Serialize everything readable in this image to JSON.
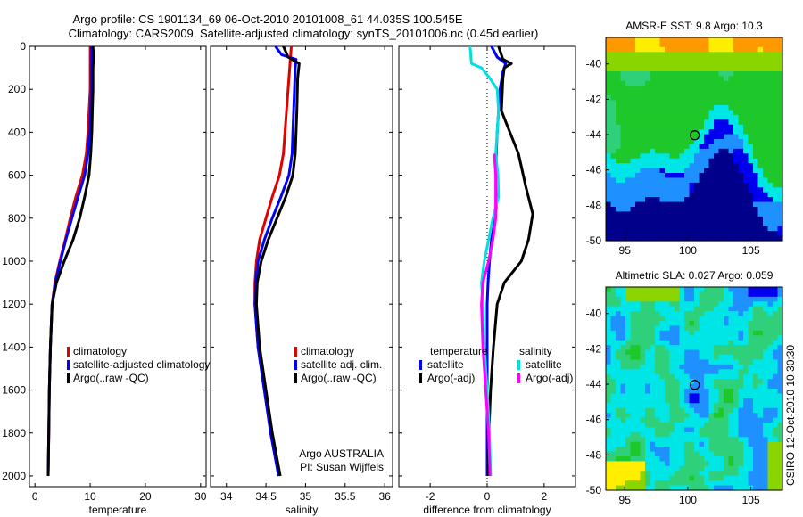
{
  "header": {
    "line1": "Argo profile: CS 1901134_69 06-Oct-2010 20101008_61 44.035S 100.545E",
    "line2": "Climatology: CARS2009. Satellite-adjusted climatology: synTS_20101006.nc (0.45d earlier)"
  },
  "colors": {
    "climatology": "#e00000",
    "satellite_adj": "#0000ff",
    "argo": "#000000",
    "satellite_cyan": "#00e0e0",
    "argo_adj_mag": "#ff00ff"
  },
  "chart_data": [
    {
      "type": "line",
      "name": "temperature-panel",
      "xlabel": "temperature",
      "ylabel": "",
      "xlim": [
        -1,
        31
      ],
      "ylim": [
        2050,
        0
      ],
      "xticks": [
        0,
        10,
        20,
        30
      ],
      "yticks": [
        0,
        200,
        400,
        600,
        800,
        1000,
        1200,
        1400,
        1600,
        1800,
        2000
      ],
      "legend_placement": "lower-right",
      "series": [
        {
          "name": "climatology",
          "color": "#e00000",
          "points": [
            [
              10.0,
              0
            ],
            [
              10.0,
              100
            ],
            [
              10.0,
              200
            ],
            [
              9.8,
              300
            ],
            [
              9.6,
              400
            ],
            [
              9.3,
              500
            ],
            [
              8.6,
              600
            ],
            [
              7.4,
              700
            ],
            [
              6.4,
              800
            ],
            [
              5.5,
              900
            ],
            [
              4.5,
              1000
            ],
            [
              3.6,
              1100
            ],
            [
              3.1,
              1200
            ],
            [
              2.8,
              1400
            ],
            [
              2.6,
              1600
            ],
            [
              2.5,
              1800
            ],
            [
              2.4,
              2000
            ]
          ]
        },
        {
          "name": "satellite-adjusted climatology",
          "color": "#0000ff",
          "points": [
            [
              10.2,
              0
            ],
            [
              10.2,
              100
            ],
            [
              10.2,
              200
            ],
            [
              10.1,
              300
            ],
            [
              9.9,
              400
            ],
            [
              9.6,
              500
            ],
            [
              9.0,
              600
            ],
            [
              7.8,
              700
            ],
            [
              6.7,
              800
            ],
            [
              5.6,
              900
            ],
            [
              4.6,
              1000
            ],
            [
              3.7,
              1100
            ],
            [
              3.1,
              1200
            ],
            [
              2.8,
              1400
            ],
            [
              2.6,
              1600
            ],
            [
              2.5,
              1800
            ],
            [
              2.4,
              2000
            ]
          ]
        },
        {
          "name": "Argo(..raw -QC)",
          "color": "#000000",
          "points": [
            [
              10.5,
              0
            ],
            [
              10.6,
              50
            ],
            [
              10.5,
              100
            ],
            [
              10.5,
              200
            ],
            [
              10.4,
              300
            ],
            [
              10.3,
              400
            ],
            [
              10.1,
              500
            ],
            [
              9.8,
              600
            ],
            [
              9.0,
              700
            ],
            [
              8.1,
              800
            ],
            [
              6.9,
              900
            ],
            [
              5.3,
              1000
            ],
            [
              3.9,
              1100
            ],
            [
              3.1,
              1200
            ],
            [
              2.8,
              1400
            ],
            [
              2.6,
              1600
            ],
            [
              2.5,
              1800
            ],
            [
              2.4,
              2000
            ]
          ]
        }
      ],
      "legend": [
        "climatology",
        "satellite-adjusted climatology",
        "Argo(..raw -QC)"
      ]
    },
    {
      "type": "line",
      "name": "salinity-panel",
      "xlabel": "salinity",
      "xlim": [
        33.8,
        36.1
      ],
      "ylim": [
        2050,
        0
      ],
      "xticks": [
        34,
        34.5,
        35,
        35.5,
        36
      ],
      "legend_placement": "lower-right",
      "series": [
        {
          "name": "climatology",
          "color": "#e00000",
          "points": [
            [
              34.82,
              0
            ],
            [
              34.8,
              100
            ],
            [
              34.78,
              200
            ],
            [
              34.76,
              300
            ],
            [
              34.74,
              400
            ],
            [
              34.72,
              500
            ],
            [
              34.67,
              600
            ],
            [
              34.58,
              700
            ],
            [
              34.5,
              800
            ],
            [
              34.42,
              900
            ],
            [
              34.38,
              1000
            ],
            [
              34.36,
              1100
            ],
            [
              34.36,
              1200
            ],
            [
              34.4,
              1400
            ],
            [
              34.48,
              1600
            ],
            [
              34.56,
              1800
            ],
            [
              34.66,
              2000
            ]
          ]
        },
        {
          "name": "satellite adj. clim.",
          "color": "#0000ff",
          "points": [
            [
              34.62,
              0
            ],
            [
              34.7,
              40
            ],
            [
              34.88,
              60
            ],
            [
              34.87,
              100
            ],
            [
              34.86,
              200
            ],
            [
              34.85,
              300
            ],
            [
              34.84,
              400
            ],
            [
              34.83,
              500
            ],
            [
              34.79,
              600
            ],
            [
              34.69,
              700
            ],
            [
              34.58,
              800
            ],
            [
              34.48,
              900
            ],
            [
              34.4,
              1000
            ],
            [
              34.37,
              1100
            ],
            [
              34.36,
              1200
            ],
            [
              34.4,
              1400
            ],
            [
              34.48,
              1600
            ],
            [
              34.56,
              1800
            ],
            [
              34.66,
              2000
            ]
          ]
        },
        {
          "name": "Argo(..raw -QC)",
          "color": "#000000",
          "points": [
            [
              34.72,
              0
            ],
            [
              34.78,
              50
            ],
            [
              34.92,
              80
            ],
            [
              34.9,
              150
            ],
            [
              34.89,
              300
            ],
            [
              34.88,
              400
            ],
            [
              34.87,
              500
            ],
            [
              34.84,
              600
            ],
            [
              34.75,
              700
            ],
            [
              34.64,
              800
            ],
            [
              34.53,
              900
            ],
            [
              34.44,
              1000
            ],
            [
              34.39,
              1100
            ],
            [
              34.38,
              1200
            ],
            [
              34.42,
              1400
            ],
            [
              34.5,
              1600
            ],
            [
              34.58,
              1800
            ],
            [
              34.68,
              2000
            ]
          ]
        }
      ],
      "legend": [
        "climatology",
        "satellite adj. clim.",
        "Argo(..raw -QC)"
      ],
      "annotation": [
        "Argo AUSTRALIA",
        "PI: Susan Wijffels"
      ]
    },
    {
      "type": "line",
      "name": "difference-panel",
      "xlabel": "difference from climatology",
      "xlim": [
        -3.1,
        3.1
      ],
      "ylim": [
        2050,
        0
      ],
      "xticks": [
        -2,
        0,
        2
      ],
      "legend_placement": "lower-center",
      "legend_temperature_title": "temperature",
      "legend_salinity_title": "salinity",
      "series": [
        {
          "name": "satellite",
          "group": "temperature",
          "color": "#0000ff",
          "points": [
            [
              0.15,
              0
            ],
            [
              0.35,
              50
            ],
            [
              0.65,
              80
            ],
            [
              0.55,
              120
            ],
            [
              0.45,
              200
            ],
            [
              0.4,
              300
            ],
            [
              0.35,
              400
            ],
            [
              0.32,
              500
            ],
            [
              0.32,
              600
            ],
            [
              0.35,
              700
            ],
            [
              0.28,
              800
            ],
            [
              0.15,
              900
            ],
            [
              0.08,
              1000
            ],
            [
              0.03,
              1100
            ],
            [
              0.0,
              1200
            ],
            [
              0.0,
              1400
            ],
            [
              0.0,
              1600
            ],
            [
              0.0,
              1800
            ],
            [
              0.0,
              2000
            ]
          ]
        },
        {
          "name": "Argo(-adj)",
          "group": "temperature",
          "color": "#000000",
          "points": [
            [
              0.4,
              0
            ],
            [
              0.55,
              60
            ],
            [
              0.85,
              80
            ],
            [
              0.6,
              100
            ],
            [
              0.55,
              150
            ],
            [
              0.5,
              300
            ],
            [
              0.8,
              400
            ],
            [
              1.1,
              500
            ],
            [
              1.35,
              650
            ],
            [
              1.6,
              780
            ],
            [
              1.45,
              900
            ],
            [
              1.2,
              1000
            ],
            [
              0.6,
              1100
            ],
            [
              0.35,
              1200
            ],
            [
              0.22,
              1400
            ],
            [
              0.12,
              1600
            ],
            [
              0.06,
              1800
            ],
            [
              0.05,
              2000
            ]
          ]
        },
        {
          "name": "satellite",
          "group": "salinity",
          "color": "#00e0e0",
          "points": [
            [
              -0.6,
              0
            ],
            [
              -0.55,
              80
            ],
            [
              -0.2,
              100
            ],
            [
              0.1,
              150
            ],
            [
              0.35,
              200
            ],
            [
              0.4,
              300
            ],
            [
              0.35,
              400
            ],
            [
              0.3,
              500
            ],
            [
              0.38,
              600
            ],
            [
              0.4,
              700
            ],
            [
              0.2,
              800
            ],
            [
              0.05,
              900
            ],
            [
              -0.1,
              1000
            ],
            [
              -0.2,
              1100
            ],
            [
              -0.15,
              1200
            ],
            [
              -0.1,
              1400
            ],
            [
              0.0,
              1600
            ],
            [
              0.08,
              1800
            ],
            [
              0.12,
              2000
            ]
          ]
        },
        {
          "name": "Argo(-adj)",
          "group": "salinity",
          "color": "#ff00ff",
          "points": [
            [
              0.25,
              500
            ],
            [
              0.3,
              600
            ],
            [
              0.3,
              800
            ],
            [
              0.2,
              900
            ],
            [
              0.05,
              1000
            ],
            [
              -0.15,
              1100
            ],
            [
              -0.2,
              1200
            ],
            [
              -0.15,
              1400
            ],
            [
              -0.05,
              1600
            ],
            [
              0.05,
              1800
            ],
            [
              0.1,
              2000
            ]
          ]
        }
      ]
    }
  ],
  "maps": [
    {
      "name": "sst-map",
      "title": "AMSR-E SST: 9.8 Argo: 10.3",
      "xlim": [
        93.5,
        107.5
      ],
      "ylim": [
        -50,
        -38.5
      ],
      "xticks": [
        95,
        100,
        105
      ],
      "yticks": [
        -40,
        -42,
        -44,
        -46,
        -48,
        -50
      ],
      "marker": [
        100.545,
        -44.035
      ]
    },
    {
      "name": "sla-map",
      "title": "Altimetric SLA: 0.027 Argo: 0.059",
      "xlim": [
        93.5,
        107.5
      ],
      "ylim": [
        -50,
        -38.5
      ],
      "xticks": [
        95,
        100,
        105
      ],
      "yticks": [
        -40,
        -42,
        -44,
        -46,
        -48,
        -50
      ],
      "marker": [
        100.545,
        -44.035
      ]
    }
  ],
  "credit": "CSIRO 12-Oct-2010 10:30:30"
}
